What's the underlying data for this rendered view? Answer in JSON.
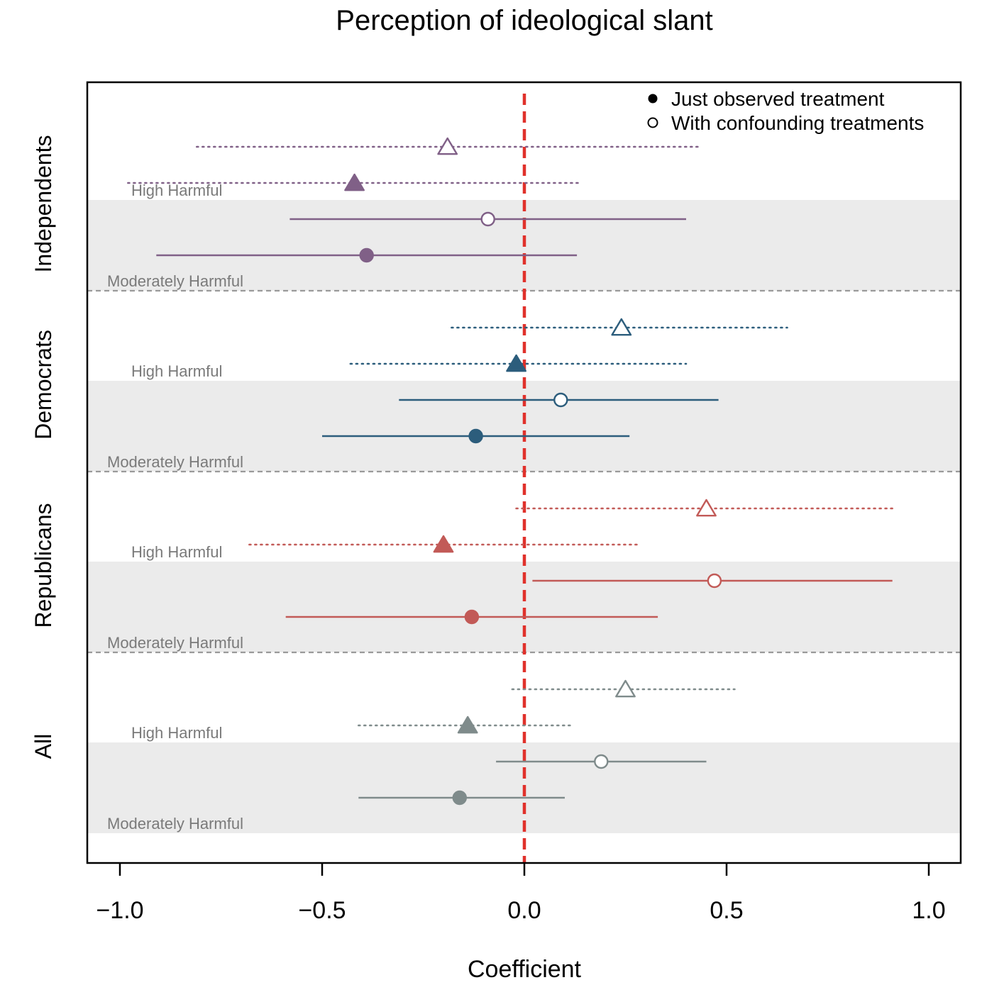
{
  "chart_data": {
    "type": "forest",
    "title": "Perception of ideological slant",
    "xlabel": "Coefficient",
    "ylabel": "",
    "xlim": [
      -1.08,
      1.08
    ],
    "x_ticks": [
      -1.0,
      -0.5,
      0.0,
      0.5,
      1.0
    ],
    "x_tick_labels": [
      "−1.0",
      "−0.5",
      "0.0",
      "0.5",
      "1.0"
    ],
    "reference_line": {
      "x": 0.0,
      "color": "#e0312b",
      "style": "dashed"
    },
    "legend": {
      "position": "top-right",
      "entries": [
        {
          "label": "Just observed treatment",
          "marker": "filled"
        },
        {
          "label": "With confounding treatments",
          "marker": "open"
        }
      ]
    },
    "groups": [
      {
        "name": "Independents",
        "color": "#806087",
        "bands": [
          {
            "label": "High Harmful",
            "shaded": false,
            "marker": "triangle",
            "line": "dotted",
            "estimates": [
              {
                "type": "With confounding treatments",
                "est": -0.19,
                "lo": -0.81,
                "hi": 0.43
              },
              {
                "type": "Just observed treatment",
                "est": -0.42,
                "lo": -0.98,
                "hi": 0.14
              }
            ]
          },
          {
            "label": "Moderately Harmful",
            "shaded": true,
            "marker": "circle",
            "line": "solid",
            "estimates": [
              {
                "type": "With confounding treatments",
                "est": -0.09,
                "lo": -0.58,
                "hi": 0.4
              },
              {
                "type": "Just observed treatment",
                "est": -0.39,
                "lo": -0.91,
                "hi": 0.13
              }
            ]
          }
        ]
      },
      {
        "name": "Democrats",
        "color": "#2c5d7c",
        "bands": [
          {
            "label": "High Harmful",
            "shaded": false,
            "marker": "triangle",
            "line": "dotted",
            "estimates": [
              {
                "type": "With confounding treatments",
                "est": 0.24,
                "lo": -0.18,
                "hi": 0.65
              },
              {
                "type": "Just observed treatment",
                "est": -0.02,
                "lo": -0.43,
                "hi": 0.4
              }
            ]
          },
          {
            "label": "Moderately Harmful",
            "shaded": true,
            "marker": "circle",
            "line": "solid",
            "estimates": [
              {
                "type": "With confounding treatments",
                "est": 0.09,
                "lo": -0.31,
                "hi": 0.48
              },
              {
                "type": "Just observed treatment",
                "est": -0.12,
                "lo": -0.5,
                "hi": 0.26
              }
            ]
          }
        ]
      },
      {
        "name": "Republicans",
        "color": "#c25a57",
        "bands": [
          {
            "label": "High Harmful",
            "shaded": false,
            "marker": "triangle",
            "line": "dotted",
            "estimates": [
              {
                "type": "With confounding treatments",
                "est": 0.45,
                "lo": -0.02,
                "hi": 0.91
              },
              {
                "type": "Just observed treatment",
                "est": -0.2,
                "lo": -0.68,
                "hi": 0.28
              }
            ]
          },
          {
            "label": "Moderately Harmful",
            "shaded": true,
            "marker": "circle",
            "line": "solid",
            "estimates": [
              {
                "type": "With confounding treatments",
                "est": 0.47,
                "lo": 0.02,
                "hi": 0.91
              },
              {
                "type": "Just observed treatment",
                "est": -0.13,
                "lo": -0.59,
                "hi": 0.33
              }
            ]
          }
        ]
      },
      {
        "name": "All",
        "color": "#7f8b8b",
        "bands": [
          {
            "label": "High Harmful",
            "shaded": false,
            "marker": "triangle",
            "line": "dotted",
            "estimates": [
              {
                "type": "With confounding treatments",
                "est": 0.25,
                "lo": -0.03,
                "hi": 0.52
              },
              {
                "type": "Just observed treatment",
                "est": -0.14,
                "lo": -0.41,
                "hi": 0.12
              }
            ]
          },
          {
            "label": "Moderately Harmful",
            "shaded": true,
            "marker": "circle",
            "line": "solid",
            "estimates": [
              {
                "type": "With confounding treatments",
                "est": 0.19,
                "lo": -0.07,
                "hi": 0.45
              },
              {
                "type": "Just observed treatment",
                "est": -0.16,
                "lo": -0.41,
                "hi": 0.1
              }
            ]
          }
        ]
      }
    ]
  }
}
